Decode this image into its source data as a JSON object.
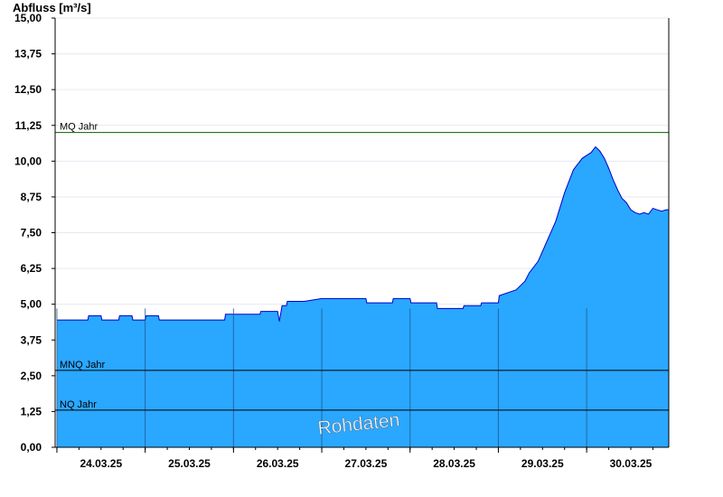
{
  "chart_data": {
    "type": "area",
    "ylabel": "Abfluss [m³/s]",
    "xlabel": "",
    "title": "",
    "ylim": [
      0,
      15
    ],
    "yticks": [
      "0,00",
      "1,25",
      "2,50",
      "3,75",
      "5,00",
      "6,25",
      "7,50",
      "8,75",
      "10,00",
      "11,25",
      "12,50",
      "13,75",
      "15,00"
    ],
    "xlim": [
      -0.02,
      6.93
    ],
    "x_tick_labels": [
      "24.03.25",
      "25.03.25",
      "26.03.25",
      "27.03.25",
      "28.03.25",
      "29.03.25",
      "30.03.25"
    ],
    "grid": true,
    "series": [
      {
        "x": [
          0.0,
          0.35,
          0.36,
          0.5,
          0.51,
          0.7,
          0.71,
          0.85,
          0.86,
          1.0,
          1.01,
          1.15,
          1.16,
          1.9,
          1.91,
          2.3,
          2.31,
          2.5,
          2.52,
          2.55,
          2.56,
          2.6,
          2.61,
          2.8,
          3.0,
          3.5,
          3.51,
          3.8,
          3.81,
          4.0,
          4.01,
          4.3,
          4.31,
          4.6,
          4.61,
          4.8,
          4.81,
          5.0,
          5.01,
          5.2,
          5.3,
          5.35,
          5.45,
          5.55,
          5.65,
          5.75,
          5.85,
          5.95,
          6.05,
          6.1,
          6.15,
          6.2,
          6.25,
          6.3,
          6.35,
          6.4,
          6.45,
          6.5,
          6.55,
          6.6,
          6.65,
          6.7,
          6.75,
          6.8,
          6.85,
          6.9,
          6.93
        ],
        "values": [
          4.45,
          4.45,
          4.6,
          4.6,
          4.45,
          4.45,
          4.6,
          4.6,
          4.45,
          4.45,
          4.6,
          4.6,
          4.45,
          4.45,
          4.65,
          4.65,
          4.75,
          4.75,
          4.4,
          4.95,
          4.95,
          4.95,
          5.1,
          5.1,
          5.2,
          5.2,
          5.05,
          5.05,
          5.2,
          5.2,
          5.05,
          5.05,
          4.85,
          4.85,
          4.95,
          4.95,
          5.05,
          5.05,
          5.3,
          5.5,
          5.8,
          6.1,
          6.5,
          7.2,
          7.9,
          8.9,
          9.7,
          10.1,
          10.3,
          10.5,
          10.35,
          10.1,
          9.75,
          9.35,
          9.0,
          8.7,
          8.55,
          8.3,
          8.2,
          8.15,
          8.2,
          8.15,
          8.35,
          8.3,
          8.25,
          8.3,
          8.3
        ]
      }
    ],
    "reference_lines": [
      {
        "label": "MQ Jahr",
        "value": 11.0,
        "color": "#006400"
      },
      {
        "label": "MNQ Jahr",
        "value": 2.69,
        "color": "#000000"
      },
      {
        "label": "NQ Jahr",
        "value": 1.3,
        "color": "#000000"
      }
    ],
    "fill_color": "#2aa7ff",
    "line_color": "#0000cc",
    "watermark": "Rohdaten"
  }
}
